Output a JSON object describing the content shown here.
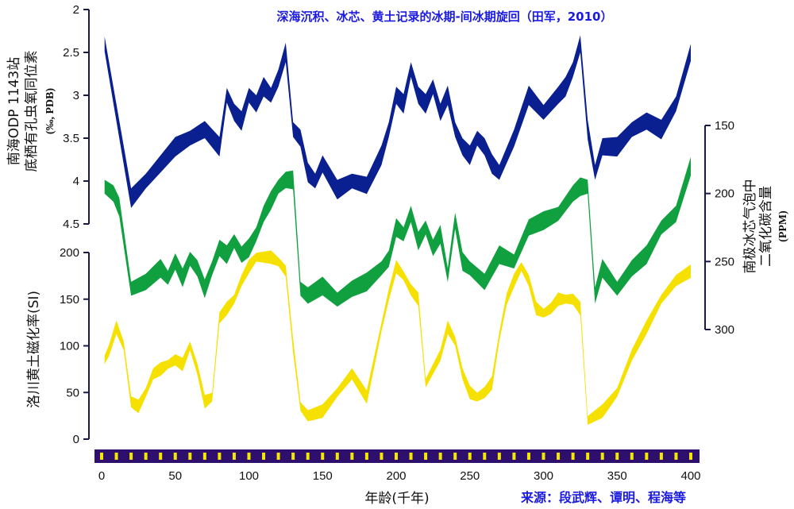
{
  "chart_data": {
    "type": "line",
    "title": "深海沉积、冰芯、黄土记录的冰期-间冰期旋回（田军，2010）",
    "source": "来源：段武辉、谭明、程海等",
    "xlabel": "年龄(千年)",
    "x_ticks": [
      "0",
      "50",
      "100",
      "150",
      "200",
      "250",
      "300",
      "350",
      "400"
    ],
    "xlim": [
      0,
      400
    ],
    "series": [
      {
        "name": "南海ODP 1143站底栖有孔虫氧同位素",
        "label_lines": [
          "南海ODP 1143站",
          "底栖有孔虫氧同位素"
        ],
        "unit": "(‰, PDB)",
        "axis": "left-top",
        "ylim": [
          2,
          4.5
        ],
        "inverted": true,
        "y_ticks": [
          "2",
          "2.5",
          "3",
          "3.5",
          "4",
          "4.5"
        ],
        "x": [
          2,
          10,
          20,
          30,
          40,
          50,
          60,
          70,
          80,
          85,
          90,
          95,
          100,
          105,
          110,
          115,
          120,
          125,
          130,
          135,
          140,
          145,
          150,
          160,
          170,
          180,
          190,
          195,
          200,
          205,
          210,
          215,
          220,
          225,
          230,
          235,
          240,
          245,
          250,
          255,
          260,
          265,
          270,
          280,
          290,
          300,
          310,
          315,
          320,
          325,
          330,
          335,
          340,
          350,
          360,
          370,
          380,
          390,
          400
        ],
        "values": [
          2.4,
          3.2,
          4.2,
          4.0,
          3.8,
          3.6,
          3.5,
          3.4,
          3.6,
          3.0,
          3.2,
          3.3,
          3.0,
          3.1,
          2.9,
          3.0,
          2.8,
          2.5,
          3.4,
          3.5,
          3.9,
          4.0,
          3.8,
          4.1,
          4.0,
          4.05,
          3.7,
          3.4,
          3.0,
          3.1,
          2.7,
          3.0,
          3.1,
          2.9,
          3.2,
          3.0,
          3.4,
          3.6,
          3.7,
          3.5,
          3.6,
          3.8,
          3.9,
          3.5,
          3.0,
          3.2,
          3.0,
          2.9,
          2.7,
          2.4,
          3.4,
          3.9,
          3.6,
          3.6,
          3.4,
          3.3,
          3.4,
          3.1,
          2.5
        ],
        "band": 0.1,
        "colors": {
          "low": "#0a1f90",
          "high": "#1fa050"
        }
      },
      {
        "name": "南极冰芯气泡中二氧化碳含量",
        "label_lines": [
          "南极冰芯气泡中",
          "二氧化碳含量"
        ],
        "unit": "(PPM)",
        "axis": "right",
        "ylim": [
          150,
          300
        ],
        "y_ticks": [
          "150",
          "200",
          "250",
          "300"
        ],
        "x": [
          2,
          8,
          12,
          20,
          30,
          40,
          45,
          50,
          55,
          60,
          65,
          70,
          75,
          80,
          85,
          90,
          95,
          100,
          105,
          110,
          115,
          120,
          125,
          130,
          135,
          140,
          150,
          160,
          170,
          180,
          190,
          195,
          200,
          205,
          210,
          215,
          220,
          225,
          230,
          235,
          240,
          245,
          250,
          260,
          270,
          280,
          290,
          300,
          310,
          320,
          325,
          330,
          335,
          340,
          350,
          360,
          370,
          380,
          390,
          400
        ],
        "values": [
          195,
          200,
          210,
          270,
          265,
          255,
          262,
          250,
          262,
          248,
          255,
          270,
          255,
          240,
          245,
          235,
          245,
          240,
          230,
          215,
          205,
          195,
          190,
          190,
          270,
          275,
          268,
          278,
          270,
          265,
          255,
          248,
          225,
          230,
          215,
          235,
          225,
          240,
          230,
          260,
          220,
          250,
          255,
          265,
          245,
          250,
          225,
          220,
          215,
          200,
          195,
          195,
          275,
          255,
          270,
          255,
          245,
          225,
          215,
          180
        ],
        "band": 6,
        "colors": {
          "low": "#20a030",
          "high": "#f0a020"
        }
      },
      {
        "name": "洛川黄土磁化率",
        "label_lines": [
          "洛川黄土磁化率(SI)"
        ],
        "unit": "(SI)",
        "axis": "left-bottom",
        "ylim": [
          0,
          200
        ],
        "y_ticks": [
          "0",
          "50",
          "100",
          "150",
          "200"
        ],
        "x": [
          2,
          5,
          10,
          15,
          20,
          25,
          30,
          35,
          40,
          45,
          50,
          55,
          60,
          65,
          70,
          75,
          80,
          85,
          90,
          95,
          100,
          105,
          110,
          115,
          120,
          125,
          130,
          135,
          140,
          150,
          160,
          170,
          180,
          190,
          195,
          200,
          205,
          210,
          215,
          220,
          230,
          235,
          240,
          245,
          250,
          255,
          260,
          265,
          270,
          275,
          280,
          285,
          290,
          295,
          300,
          305,
          310,
          315,
          320,
          325,
          330,
          335,
          340,
          350,
          360,
          370,
          380,
          390,
          400
        ],
        "values": [
          85,
          95,
          120,
          100,
          40,
          35,
          50,
          70,
          75,
          80,
          85,
          80,
          100,
          75,
          40,
          45,
          130,
          140,
          150,
          170,
          185,
          195,
          195,
          195,
          190,
          180,
          100,
          35,
          25,
          30,
          50,
          70,
          45,
          120,
          155,
          185,
          175,
          160,
          150,
          60,
          90,
          120,
          105,
          70,
          50,
          45,
          50,
          60,
          110,
          150,
          170,
          185,
          170,
          140,
          135,
          140,
          150,
          150,
          150,
          140,
          20,
          25,
          30,
          50,
          90,
          120,
          150,
          170,
          180
        ],
        "band": 6,
        "colors": {
          "low": "#f0d000",
          "high": "#d02020"
        }
      }
    ],
    "timeline_ticks": [
      0,
      10,
      20,
      30,
      40,
      50,
      60,
      70,
      80,
      90,
      100,
      110,
      120,
      130,
      140,
      150,
      160,
      170,
      180,
      190,
      200,
      210,
      220,
      230,
      240,
      250,
      260,
      270,
      280,
      290,
      300,
      310,
      320,
      330,
      340,
      350,
      360,
      370,
      380,
      390,
      400
    ],
    "legend": "none",
    "grid": false
  }
}
